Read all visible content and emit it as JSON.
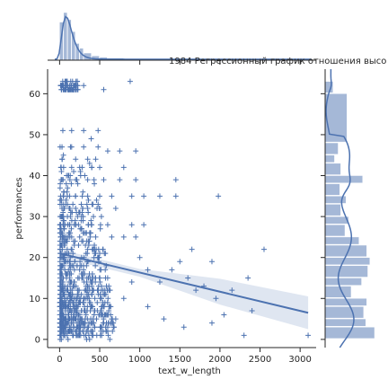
{
  "chart_data": {
    "type": "scatter",
    "title": "1984 Регрессионный график отношения высо",
    "xlabel": "text_w_length",
    "ylabel": "performances",
    "xlim": [
      -150,
      3200
    ],
    "ylim": [
      -2,
      66
    ],
    "x_ticks": [
      0,
      500,
      1000,
      1500,
      2000,
      2500,
      3000
    ],
    "y_ticks": [
      0,
      10,
      20,
      30,
      40,
      50,
      60
    ],
    "marker": "plus",
    "colors": {
      "points": "#4c72b0",
      "line": "#4c72b0",
      "band": "#4c72b0",
      "hist": "#4c72b0"
    },
    "regression": {
      "x": [
        0,
        3100
      ],
      "y": [
        21,
        6.5
      ],
      "ci_band": {
        "x": [
          0,
          1000,
          2000,
          3100
        ],
        "lower": [
          20,
          15.3,
          8.5,
          2.5
        ],
        "upper": [
          22,
          17.2,
          14.8,
          10.5
        ]
      }
    },
    "sample_points": [
      [
        50,
        62
      ],
      [
        100,
        62
      ],
      [
        200,
        62
      ],
      [
        300,
        62
      ],
      [
        550,
        61
      ],
      [
        880,
        63
      ],
      [
        40,
        51
      ],
      [
        150,
        51
      ],
      [
        300,
        51
      ],
      [
        480,
        51
      ],
      [
        30,
        47
      ],
      [
        150,
        47
      ],
      [
        300,
        47
      ],
      [
        480,
        47
      ],
      [
        600,
        46
      ],
      [
        750,
        46
      ],
      [
        950,
        46
      ],
      [
        30,
        44
      ],
      [
        200,
        44
      ],
      [
        350,
        44
      ],
      [
        450,
        44
      ],
      [
        50,
        42
      ],
      [
        150,
        42
      ],
      [
        250,
        42
      ],
      [
        400,
        42
      ],
      [
        500,
        42
      ],
      [
        800,
        42
      ],
      [
        30,
        39
      ],
      [
        200,
        39
      ],
      [
        350,
        39
      ],
      [
        550,
        39
      ],
      [
        750,
        39
      ],
      [
        950,
        39
      ],
      [
        1450,
        39
      ],
      [
        50,
        35
      ],
      [
        200,
        35
      ],
      [
        350,
        35
      ],
      [
        500,
        35
      ],
      [
        650,
        35
      ],
      [
        900,
        35
      ],
      [
        1050,
        35
      ],
      [
        1250,
        35
      ],
      [
        1450,
        35
      ],
      [
        1980,
        35
      ],
      [
        30,
        32
      ],
      [
        200,
        32
      ],
      [
        350,
        32
      ],
      [
        500,
        32
      ],
      [
        700,
        32
      ],
      [
        50,
        28
      ],
      [
        200,
        28
      ],
      [
        400,
        28
      ],
      [
        600,
        28
      ],
      [
        900,
        28
      ],
      [
        1050,
        28
      ],
      [
        50,
        25
      ],
      [
        250,
        25
      ],
      [
        450,
        25
      ],
      [
        650,
        25
      ],
      [
        800,
        25
      ],
      [
        950,
        25
      ],
      [
        2550,
        22
      ],
      [
        1650,
        22
      ],
      [
        1500,
        19
      ],
      [
        1900,
        19
      ],
      [
        2150,
        12
      ],
      [
        2350,
        15
      ],
      [
        1950,
        10
      ],
      [
        2050,
        6
      ],
      [
        2400,
        7
      ],
      [
        1550,
        3
      ],
      [
        1900,
        4
      ],
      [
        2300,
        1
      ],
      [
        3100,
        1
      ],
      [
        1300,
        5
      ],
      [
        1100,
        8
      ],
      [
        1250,
        14
      ],
      [
        1600,
        15
      ],
      [
        1700,
        12
      ],
      [
        1400,
        17
      ],
      [
        1800,
        13
      ],
      [
        1000,
        20
      ],
      [
        1100,
        17
      ],
      [
        900,
        14
      ],
      [
        800,
        10
      ],
      [
        700,
        5
      ],
      [
        600,
        2
      ]
    ],
    "top_hist": {
      "bin_edges": [
        0,
        50,
        100,
        150,
        200,
        250,
        300,
        400,
        500,
        600,
        800,
        1000,
        1500,
        2000,
        2500,
        3100
      ],
      "counts": [
        0.8,
        1.0,
        0.85,
        0.6,
        0.35,
        0.25,
        0.15,
        0.09,
        0.06,
        0.04,
        0.025,
        0.015,
        0.01,
        0.005,
        0.003
      ]
    },
    "right_hist": {
      "bin_edges": [
        0,
        3,
        5,
        8,
        10,
        13,
        15,
        18,
        20,
        23,
        25,
        28,
        30,
        33,
        35,
        38,
        40,
        43,
        45,
        48,
        60,
        63
      ],
      "counts": [
        0.95,
        0.78,
        0.74,
        0.8,
        0.5,
        0.7,
        0.82,
        0.86,
        0.8,
        0.65,
        0.38,
        0.45,
        0.3,
        0.4,
        0.28,
        0.72,
        0.3,
        0.18,
        0.25,
        0.42,
        0.15
      ]
    }
  }
}
